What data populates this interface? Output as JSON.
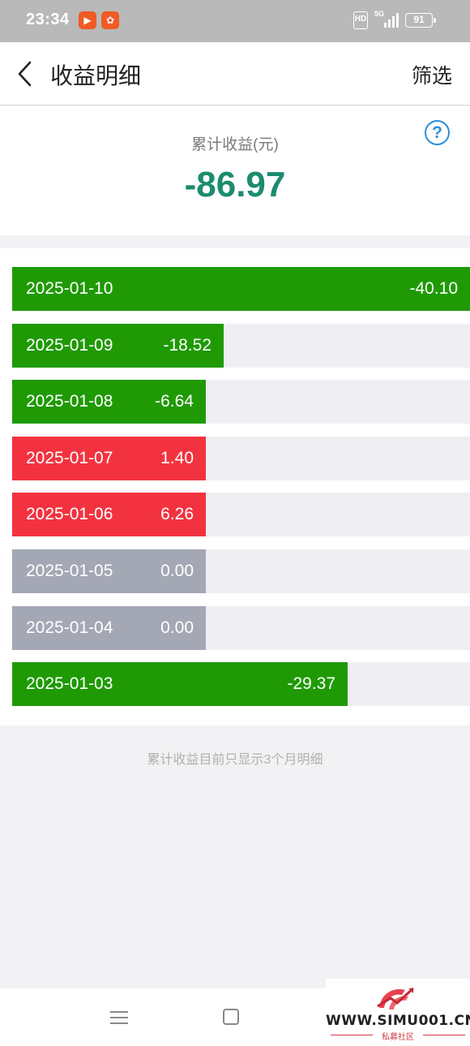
{
  "status_bar": {
    "time": "23:34",
    "hd": "HD",
    "network": "5G",
    "battery": "91"
  },
  "header": {
    "title": "收益明细",
    "filter_label": "筛选"
  },
  "summary": {
    "label": "累计收益(元)",
    "value": "-86.97",
    "help_icon": "?"
  },
  "rows": [
    {
      "date": "2025-01-10",
      "value": "-40.10",
      "amount": -40.1,
      "color": "#1f9a05"
    },
    {
      "date": "2025-01-09",
      "value": "-18.52",
      "amount": -18.52,
      "color": "#1f9a05"
    },
    {
      "date": "2025-01-08",
      "value": "-6.64",
      "amount": -6.64,
      "color": "#1f9a05"
    },
    {
      "date": "2025-01-07",
      "value": "1.40",
      "amount": 1.4,
      "color": "#f2333f"
    },
    {
      "date": "2025-01-06",
      "value": "6.26",
      "amount": 6.26,
      "color": "#f2333f"
    },
    {
      "date": "2025-01-05",
      "value": "0.00",
      "amount": 0.0,
      "color": "#a4a8b5"
    },
    {
      "date": "2025-01-04",
      "value": "0.00",
      "amount": 0.0,
      "color": "#a4a8b5"
    },
    {
      "date": "2025-01-03",
      "value": "-29.37",
      "amount": -29.37,
      "color": "#1f9a05"
    }
  ],
  "footer_note": "累计收益目前只显示3个月明细",
  "watermark": {
    "text": "WWW.SIMU001.CN",
    "subtitle": "私募社区"
  },
  "colors": {
    "accent_value": "#1c8c6e",
    "loss": "#1f9a05",
    "gain": "#f2333f",
    "zero": "#a4a8b5",
    "help": "#2d8fd8"
  }
}
